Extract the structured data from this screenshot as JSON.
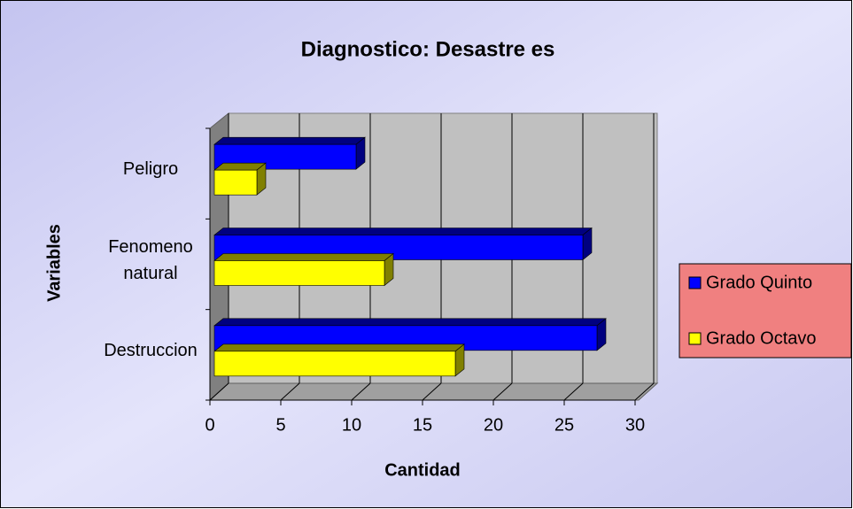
{
  "chart_data": {
    "type": "bar3d_horizontal",
    "title": "Diagnostico: Desastre es",
    "xlabel": "Cantidad",
    "ylabel": "Variables",
    "categories": [
      "Destruccion",
      "Fenomeno natural",
      "Peligro"
    ],
    "series": [
      {
        "name": "Grado Quinto",
        "color": "#0000ff",
        "values": [
          27,
          26,
          10
        ]
      },
      {
        "name": "Grado Octavo",
        "color": "#ffff00",
        "values": [
          17,
          12,
          3
        ]
      }
    ],
    "xlim": [
      0,
      30
    ],
    "xticks": [
      0,
      5,
      10,
      15,
      20,
      25,
      30
    ],
    "grid": true,
    "legend": "right"
  }
}
